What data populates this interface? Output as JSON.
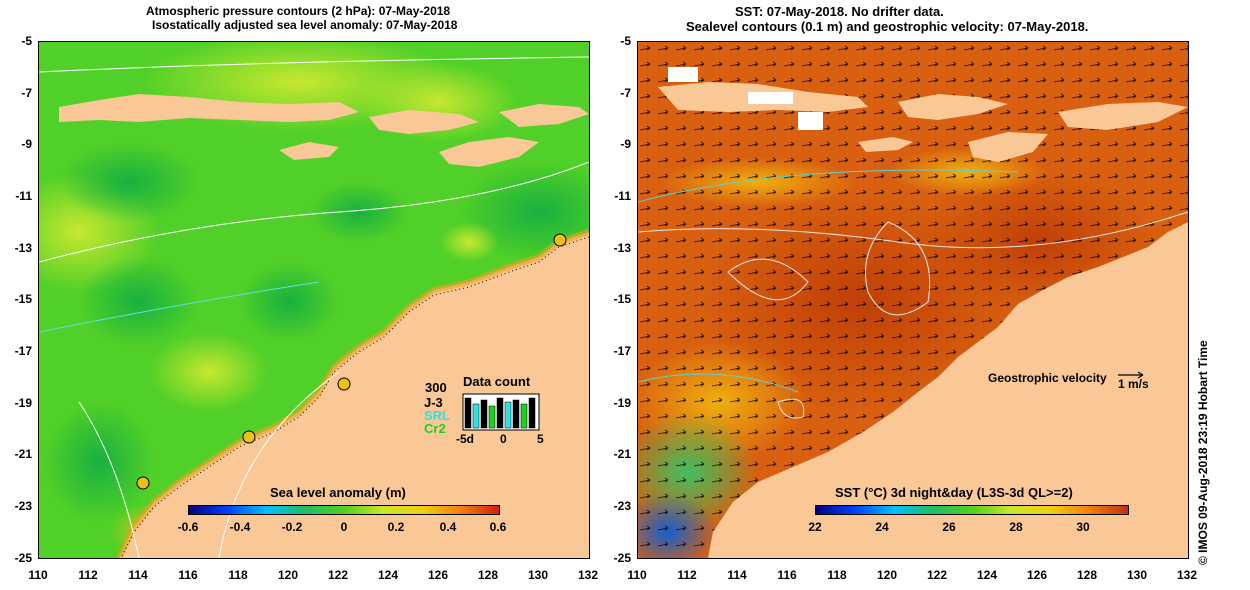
{
  "left": {
    "title1": "Atmospheric pressure contours (2 hPa): 07-May-2018",
    "title2": "Isostatically adjusted sea level anomaly: 07-May-2018",
    "y_ticks": [
      "-5",
      "-7",
      "-9",
      "-11",
      "-13",
      "-15",
      "-17",
      "-19",
      "-21",
      "-23",
      "-25"
    ],
    "x_ticks": [
      "110",
      "112",
      "114",
      "116",
      "118",
      "120",
      "122",
      "124",
      "126",
      "128",
      "130",
      "132"
    ],
    "colorbar": {
      "label": "Sea level anomaly (m)",
      "ticks": [
        "-0.6",
        "-0.4",
        "-0.2",
        "0",
        "0.2",
        "0.4",
        "0.6"
      ]
    },
    "data_count": {
      "title": "Data count",
      "scale": "300",
      "missions": [
        "J-3",
        "SRL",
        "Cr2"
      ],
      "mission_colors": [
        "#000000",
        "#30e0e0",
        "#20d020"
      ],
      "axis": [
        "-5d",
        "0",
        "5"
      ]
    }
  },
  "right": {
    "title1": "SST: 07-May-2018. No drifter data.",
    "title2": "Sealevel contours (0.1 m) and geostrophic velocity: 07-May-2018.",
    "y_ticks": [
      "-5",
      "-7",
      "-9",
      "-11",
      "-13",
      "-15",
      "-17",
      "-19",
      "-21",
      "-23",
      "-25"
    ],
    "x_ticks": [
      "110",
      "112",
      "114",
      "116",
      "118",
      "120",
      "122",
      "124",
      "126",
      "128",
      "130",
      "132"
    ],
    "colorbar": {
      "label": "SST (°C) 3d night&day (L3S-3d QL>=2)",
      "ticks": [
        "22",
        "24",
        "26",
        "28",
        "30"
      ]
    },
    "velocity_label": "Geostrophic velocity",
    "velocity_unit": "1 m/s"
  },
  "credit": "© IMOS 09-Aug-2018 23:19 Hobart Time",
  "colors": {
    "land": "#f9c896",
    "sla_green": "#50d020",
    "sst_orange": "#d86010"
  }
}
